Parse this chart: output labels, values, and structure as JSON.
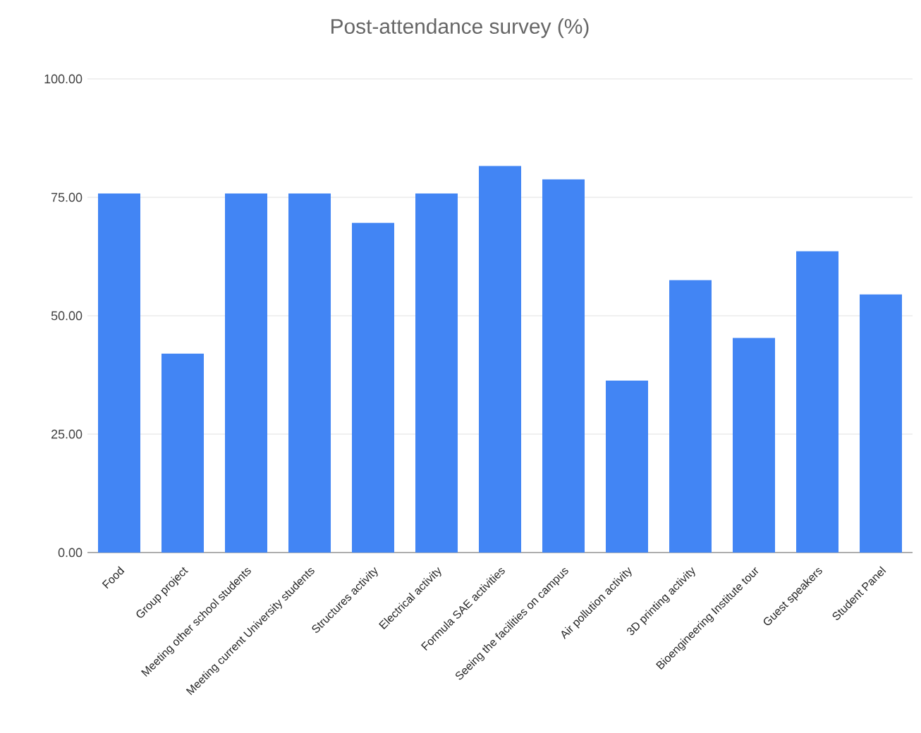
{
  "chart_data": {
    "type": "bar",
    "title": "Post-attendance survey (%)",
    "categories": [
      "Food",
      "Group project",
      "Meeting other school students",
      "Meeting current University students",
      "Structures activity",
      "Electrical activity",
      "Formula SAE activities",
      "Seeing the facilities on campus",
      "Air pollution activity",
      "3D printing activity",
      "Bioengineering Institute tour",
      "Guest speakers",
      "Student Panel"
    ],
    "values": [
      75.8,
      42,
      75.8,
      75.8,
      69.6,
      75.8,
      81.6,
      78.8,
      36.3,
      57.5,
      45.3,
      63.6,
      54.5
    ],
    "color": "#4285f4",
    "ylim": [
      0,
      100
    ],
    "yticks": [
      {
        "value": 0,
        "label": "0.00"
      },
      {
        "value": 25,
        "label": "25.00"
      },
      {
        "value": 50,
        "label": "50.00"
      },
      {
        "value": 75,
        "label": "75.00"
      },
      {
        "value": 100,
        "label": "100.00"
      }
    ],
    "grid": "y"
  }
}
